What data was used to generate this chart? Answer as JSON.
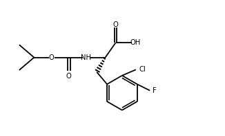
{
  "bg_color": "#ffffff",
  "line_color": "#000000",
  "line_width": 1.3,
  "font_size": 7.2,
  "fig_width": 3.26,
  "fig_height": 1.98,
  "dpi": 100,
  "xlim": [
    0,
    10.5
  ],
  "ylim": [
    0,
    6.4
  ]
}
